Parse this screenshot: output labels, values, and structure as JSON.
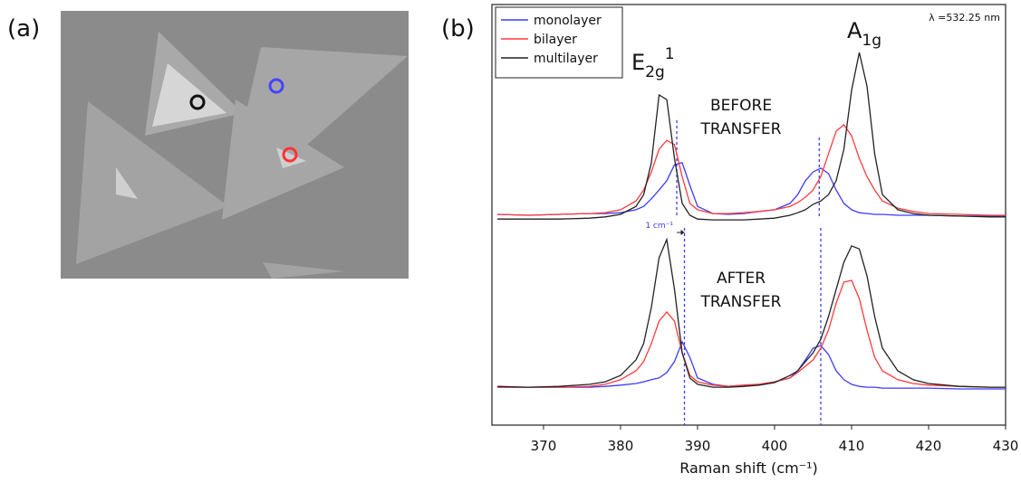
{
  "panel_labels": [
    "(a)",
    "(b)"
  ],
  "chart_data": [
    {
      "type": "line",
      "x": [
        364,
        368,
        372,
        376,
        378,
        380,
        382,
        383,
        384,
        385,
        386,
        387,
        388,
        389,
        390,
        392,
        394,
        396,
        398,
        400,
        402,
        403,
        404,
        405,
        406,
        407,
        408,
        409,
        410,
        411,
        412,
        413,
        414,
        416,
        418,
        420,
        424,
        428,
        430
      ],
      "xlim": [
        363.3,
        430
      ],
      "ylim": [
        0,
        100
      ],
      "legend": "upper left",
      "series": [
        {
          "name": "monolayer",
          "color": "#3b3bff",
          "values": [
            50.1,
            49.9,
            50.1,
            50.3,
            50.3,
            50.5,
            51.2,
            52.0,
            53.8,
            55.9,
            58.1,
            61.9,
            62.4,
            57.0,
            52.0,
            50.3,
            50.1,
            50.3,
            50.8,
            51.2,
            52.7,
            54.8,
            58.1,
            60.2,
            61.1,
            59.8,
            55.9,
            52.7,
            51.2,
            50.5,
            50.3,
            50.1,
            50.1,
            49.9,
            49.9,
            49.9,
            49.7,
            49.7,
            49.7
          ]
        },
        {
          "name": "bilayer",
          "color": "#ff3b3b",
          "values": [
            50.1,
            49.9,
            50.1,
            50.3,
            50.5,
            51.2,
            53.3,
            55.9,
            60.2,
            65.6,
            67.7,
            66.7,
            59.1,
            52.7,
            51.2,
            50.3,
            50.3,
            50.5,
            50.8,
            51.2,
            52.0,
            52.9,
            54.2,
            55.9,
            59.1,
            64.5,
            69.9,
            71.4,
            68.8,
            63.4,
            59.1,
            55.9,
            53.3,
            51.6,
            50.8,
            50.3,
            50.1,
            49.9,
            49.9
          ]
        },
        {
          "name": "multilayer",
          "color": "#222222",
          "values": [
            49.0,
            49.0,
            49.0,
            49.2,
            49.5,
            50.1,
            52.0,
            54.8,
            62.4,
            78.5,
            77.4,
            63.4,
            52.7,
            49.9,
            49.0,
            48.8,
            48.8,
            48.8,
            49.0,
            49.2,
            49.9,
            50.5,
            51.2,
            52.5,
            53.3,
            54.8,
            58.1,
            65.6,
            79.6,
            88.6,
            80.6,
            64.5,
            54.8,
            51.2,
            50.3,
            49.9,
            49.7,
            49.5,
            49.5
          ]
        }
      ],
      "vlines": [
        387.3,
        405.8
      ],
      "annotations": {
        "e2g": {
          "base": "E",
          "sub": "2g",
          "sup": "1"
        },
        "a1g": {
          "base": "A",
          "sub": "1g"
        },
        "wavelength": "λ =532.25 nm",
        "state": [
          "BEFORE",
          "TRANSFER"
        ]
      }
    },
    {
      "type": "line",
      "x": [
        364,
        368,
        372,
        376,
        378,
        380,
        382,
        383,
        384,
        385,
        386,
        387,
        388,
        389,
        390,
        392,
        394,
        396,
        398,
        400,
        402,
        403,
        404,
        405,
        406,
        407,
        408,
        409,
        410,
        411,
        412,
        413,
        414,
        416,
        418,
        420,
        424,
        428,
        430
      ],
      "xlim": [
        363.3,
        430
      ],
      "ylim": [
        0,
        100
      ],
      "xticks": [
        370,
        380,
        390,
        400,
        410,
        420,
        430
      ],
      "xlabel": "Raman shift (cm⁻¹)",
      "series": [
        {
          "color": "#3b3bff",
          "values": [
            9.0,
            9.0,
            9.0,
            9.0,
            9.2,
            9.5,
            9.9,
            10.3,
            10.8,
            11.2,
            12.5,
            15.1,
            19.8,
            16.1,
            11.2,
            9.7,
            9.2,
            9.5,
            9.7,
            10.3,
            11.2,
            12.9,
            15.5,
            18.3,
            18.9,
            16.8,
            12.9,
            10.8,
            9.7,
            9.2,
            9.0,
            9.0,
            8.8,
            8.8,
            8.8,
            8.8,
            8.6,
            8.6,
            8.6
          ]
        },
        {
          "color": "#ff3b3b",
          "values": [
            9.0,
            9.0,
            9.0,
            9.2,
            9.7,
            10.8,
            12.9,
            15.1,
            19.4,
            24.7,
            26.9,
            24.7,
            17.2,
            11.8,
            10.3,
            9.5,
            9.2,
            9.5,
            9.7,
            10.3,
            11.2,
            12.5,
            14.0,
            15.5,
            18.3,
            22.6,
            29.0,
            34.0,
            34.4,
            30.1,
            22.6,
            16.1,
            12.9,
            10.8,
            9.9,
            9.5,
            9.2,
            9.0,
            9.0
          ]
        },
        {
          "color": "#222222",
          "values": [
            9.2,
            9.0,
            9.2,
            9.7,
            10.3,
            11.8,
            15.5,
            19.4,
            28.0,
            39.8,
            44.1,
            32.3,
            17.2,
            11.2,
            9.7,
            9.0,
            9.0,
            9.2,
            9.5,
            10.1,
            11.8,
            12.9,
            15.1,
            17.2,
            20.4,
            25.8,
            32.3,
            38.7,
            42.6,
            41.9,
            35.5,
            25.8,
            18.3,
            12.9,
            10.8,
            9.9,
            9.2,
            9.0,
            9.0
          ]
        }
      ],
      "vlines": [
        388.3,
        406
      ],
      "annotations": {
        "shift": "1 cm⁻¹",
        "state": [
          "AFTER",
          "TRANSFER"
        ]
      }
    }
  ]
}
